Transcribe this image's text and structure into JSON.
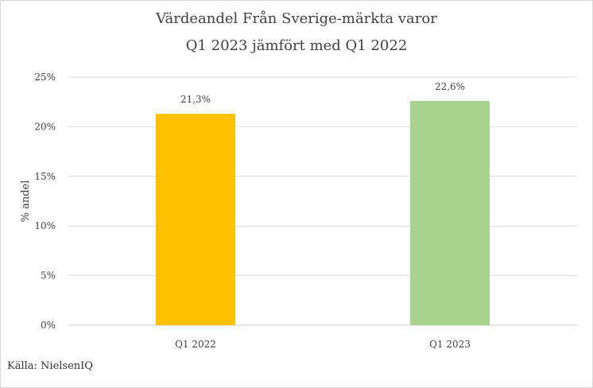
{
  "chart_data": {
    "type": "bar",
    "title": "Värdeandel Från Sverige-märkta varor",
    "subtitle": "Q1 2023 jämfört med Q1 2022",
    "categories": [
      "Q1 2022",
      "Q1 2023"
    ],
    "values": [
      21.3,
      22.6
    ],
    "value_labels": [
      "21,3%",
      "22,6%"
    ],
    "bar_colors": [
      "#FFC000",
      "#A9D18E"
    ],
    "xlabel": "",
    "ylabel": "% andel",
    "ylim": [
      0,
      25
    ],
    "yticks": [
      0,
      5,
      10,
      15,
      20,
      25
    ],
    "ytick_labels": [
      "0%",
      "5%",
      "10%",
      "15%",
      "20%",
      "25%"
    ],
    "grid": true,
    "legend": false
  },
  "source": "Källa: NielsenIQ"
}
